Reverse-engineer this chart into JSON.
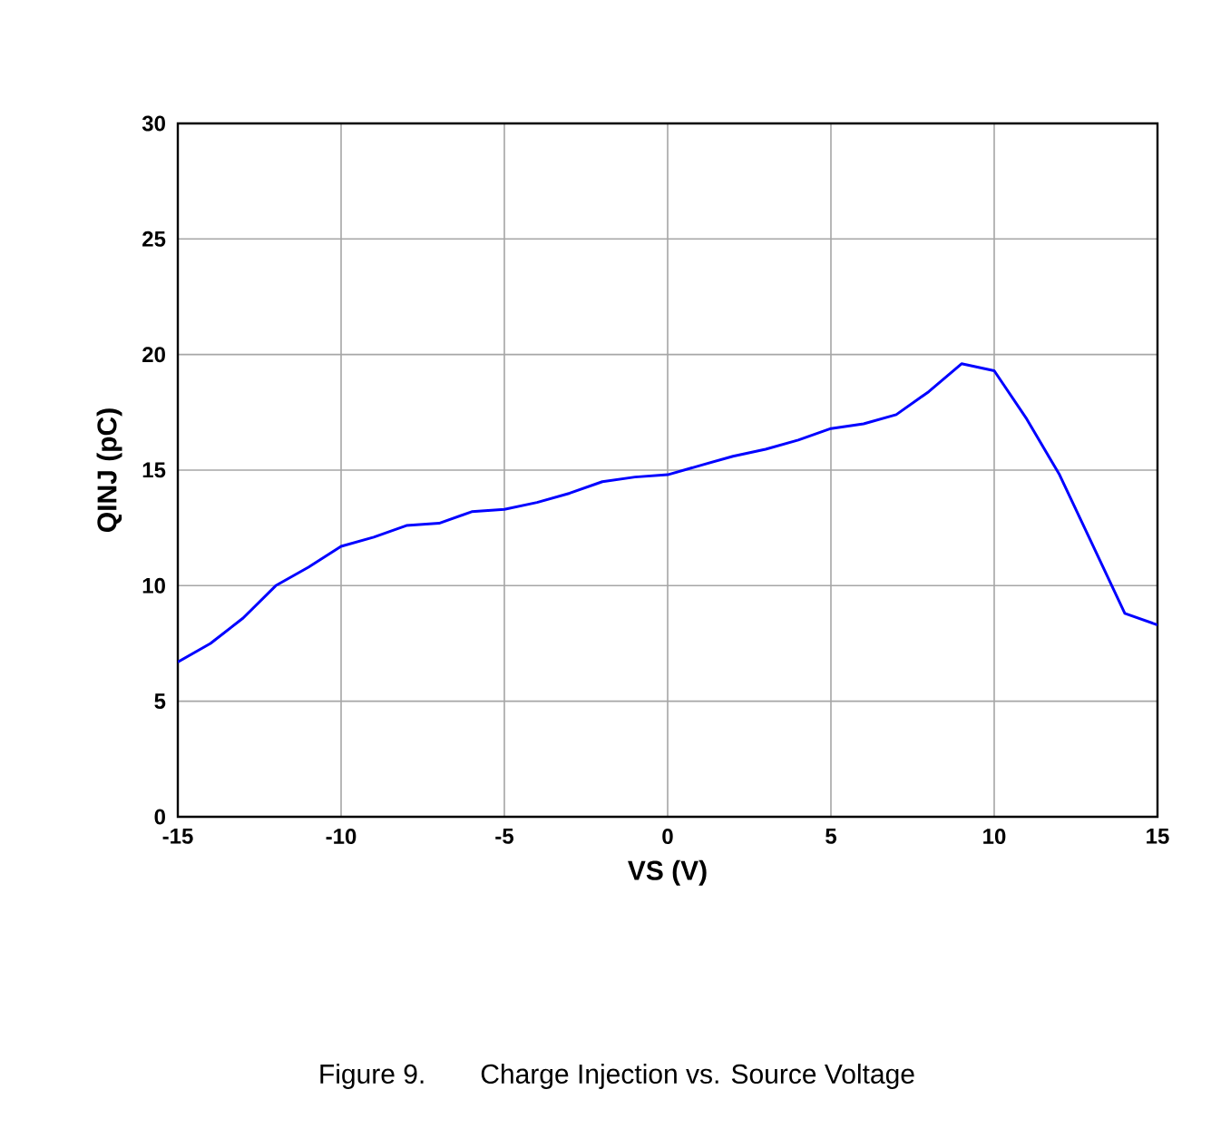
{
  "chart_data": {
    "type": "line",
    "xlabel": "VS (V)",
    "ylabel": "QINJ (pC)",
    "annotations": [
      "Figure 9.        Charge Injection vs. Source Voltage"
    ],
    "x": [
      -15,
      -14,
      -13,
      -12,
      -11,
      -10,
      -9,
      -8,
      -7,
      -6,
      -5,
      -4,
      -3,
      -2,
      -1,
      0,
      1,
      2,
      3,
      4,
      5,
      6,
      7,
      8,
      9,
      10,
      11,
      12,
      13,
      14,
      15
    ],
    "series": [
      {
        "color": "#0000ff",
        "values": [
          6.7,
          7.5,
          8.6,
          10.0,
          10.8,
          11.7,
          12.1,
          12.6,
          12.7,
          13.2,
          13.3,
          13.6,
          14.0,
          14.5,
          14.7,
          14.8,
          15.2,
          15.6,
          15.9,
          16.3,
          16.8,
          17.0,
          17.4,
          18.4,
          19.6,
          19.3,
          17.2,
          14.8,
          11.8,
          8.8,
          8.3
        ]
      }
    ],
    "xlim": [
      -15,
      15
    ],
    "ylim": [
      0,
      30
    ],
    "xticks": [
      -15,
      -10,
      -5,
      0,
      5,
      10,
      15
    ],
    "yticks": [
      0,
      5,
      10,
      15,
      20,
      25,
      30
    ],
    "grid": true,
    "marker": "none",
    "line_style": "solid"
  }
}
